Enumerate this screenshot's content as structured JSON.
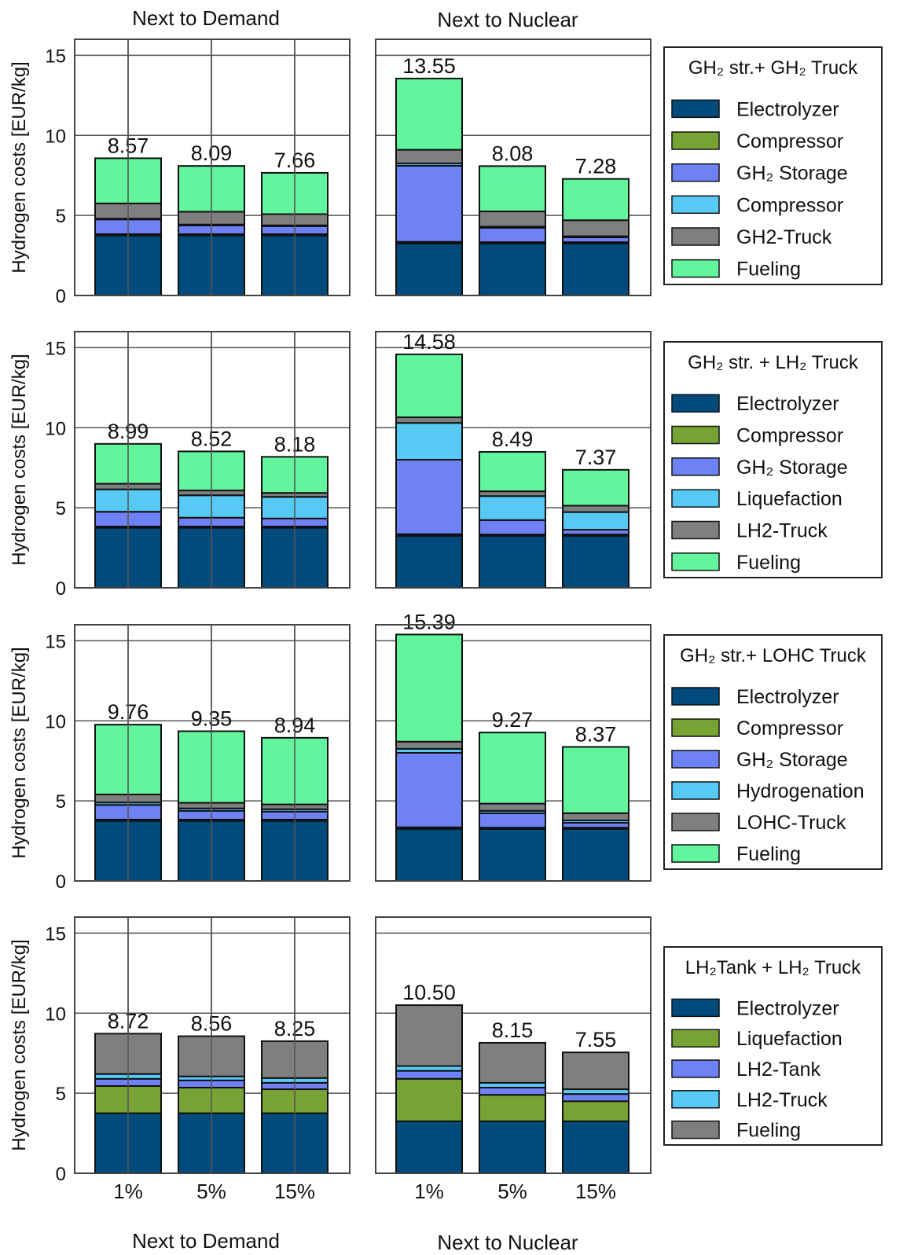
{
  "figure": {
    "column_titles_top": [
      "Next to Demand",
      "Next to Nuclear"
    ],
    "column_titles_bottom": [
      "Next to Demand",
      "Next to Nuclear"
    ],
    "ylabel": "Hydrogen costs [EUR/kg]",
    "yticks": [
      "0",
      "5",
      "10",
      "15"
    ],
    "xticks": [
      "1%",
      "5%",
      "15%"
    ]
  },
  "chart_data": [
    {
      "type": "bar",
      "stacked": true,
      "legend_title": "GH₂ str.+ GH₂ Truck",
      "ylim": [
        0,
        16
      ],
      "yticks": [
        0,
        5,
        10,
        15
      ],
      "grid": true,
      "legend_position": "right",
      "categories": [
        "1%",
        "5%",
        "15%"
      ],
      "series_names": [
        "Electrolyzer",
        "Compressor",
        "GH₂ Storage",
        "Compressor",
        "GH2-Truck",
        "Fueling"
      ],
      "colors": [
        "#004b7c",
        "#77a335",
        "#6f82f5",
        "#57c9f5",
        "#7f7f7f",
        "#62f59e"
      ],
      "panels": [
        {
          "location": "Next to Demand",
          "totals": [
            "8.57",
            "8.09",
            "7.66"
          ],
          "segments": [
            [
              3.75,
              0.08,
              0.92,
              0.05,
              0.95,
              2.82
            ],
            [
              3.75,
              0.08,
              0.55,
              0.05,
              0.8,
              2.86
            ],
            [
              3.75,
              0.08,
              0.5,
              0.05,
              0.7,
              2.58
            ]
          ]
        },
        {
          "location": "Next to Nuclear",
          "totals": [
            "13.55",
            "8.08",
            "7.28"
          ],
          "segments": [
            [
              3.25,
              0.1,
              4.75,
              0.15,
              0.85,
              4.45
            ],
            [
              3.25,
              0.08,
              0.9,
              0.07,
              0.95,
              2.83
            ],
            [
              3.25,
              0.08,
              0.3,
              0.07,
              1.0,
              2.58
            ]
          ]
        }
      ]
    },
    {
      "type": "bar",
      "stacked": true,
      "legend_title": "GH₂ str. + LH₂ Truck",
      "ylim": [
        0,
        16
      ],
      "yticks": [
        0,
        5,
        10,
        15
      ],
      "grid": true,
      "legend_position": "right",
      "categories": [
        "1%",
        "5%",
        "15%"
      ],
      "series_names": [
        "Electrolyzer",
        "Compressor",
        "GH₂ Storage",
        "Liquefaction",
        "LH2-Truck",
        "Fueling"
      ],
      "colors": [
        "#004b7c",
        "#77a335",
        "#6f82f5",
        "#57c9f5",
        "#7f7f7f",
        "#62f59e"
      ],
      "panels": [
        {
          "location": "Next to Demand",
          "totals": [
            "8.99",
            "8.52",
            "8.18"
          ],
          "segments": [
            [
              3.75,
              0.08,
              0.92,
              1.4,
              0.35,
              2.49
            ],
            [
              3.75,
              0.08,
              0.55,
              1.4,
              0.3,
              2.44
            ],
            [
              3.75,
              0.08,
              0.5,
              1.35,
              0.25,
              2.25
            ]
          ]
        },
        {
          "location": "Next to Nuclear",
          "totals": [
            "14.58",
            "8.49",
            "7.37"
          ],
          "segments": [
            [
              3.25,
              0.1,
              4.65,
              2.3,
              0.35,
              3.93
            ],
            [
              3.25,
              0.08,
              0.9,
              1.5,
              0.3,
              2.46
            ],
            [
              3.25,
              0.08,
              0.3,
              1.1,
              0.4,
              2.24
            ]
          ]
        }
      ]
    },
    {
      "type": "bar",
      "stacked": true,
      "legend_title": "GH₂ str.+ LOHC Truck",
      "ylim": [
        0,
        16
      ],
      "yticks": [
        0,
        5,
        10,
        15
      ],
      "grid": true,
      "legend_position": "right",
      "categories": [
        "1%",
        "5%",
        "15%"
      ],
      "series_names": [
        "Electrolyzer",
        "Compressor",
        "GH₂ Storage",
        "Hydrogenation",
        "LOHC-Truck",
        "Fueling"
      ],
      "colors": [
        "#004b7c",
        "#77a335",
        "#6f82f5",
        "#57c9f5",
        "#7f7f7f",
        "#62f59e"
      ],
      "panels": [
        {
          "location": "Next to Demand",
          "totals": [
            "9.76",
            "9.35",
            "8.94"
          ],
          "segments": [
            [
              3.75,
              0.08,
              0.92,
              0.15,
              0.5,
              4.36
            ],
            [
              3.75,
              0.08,
              0.55,
              0.15,
              0.35,
              4.47
            ],
            [
              3.75,
              0.08,
              0.5,
              0.15,
              0.3,
              4.16
            ]
          ]
        },
        {
          "location": "Next to Nuclear",
          "totals": [
            "15.39",
            "9.27",
            "8.37"
          ],
          "segments": [
            [
              3.25,
              0.1,
              4.65,
              0.25,
              0.45,
              6.69
            ],
            [
              3.25,
              0.08,
              0.9,
              0.15,
              0.45,
              4.44
            ],
            [
              3.25,
              0.08,
              0.3,
              0.15,
              0.45,
              4.14
            ]
          ]
        }
      ]
    },
    {
      "type": "bar",
      "stacked": true,
      "legend_title": "LH₂Tank + LH₂ Truck",
      "ylim": [
        0,
        16
      ],
      "yticks": [
        0,
        5,
        10,
        15
      ],
      "grid": true,
      "legend_position": "right",
      "categories": [
        "1%",
        "5%",
        "15%"
      ],
      "series_names": [
        "Electrolyzer",
        "Liquefaction",
        "LH2-Tank",
        "LH2-Truck",
        "Fueling"
      ],
      "colors": [
        "#004b7c",
        "#77a335",
        "#6f82f5",
        "#57c9f5",
        "#7f7f7f"
      ],
      "panels": [
        {
          "location": "Next to Demand",
          "totals": [
            "8.72",
            "8.56",
            "8.25"
          ],
          "segments": [
            [
              3.75,
              1.7,
              0.45,
              0.3,
              2.52
            ],
            [
              3.75,
              1.6,
              0.45,
              0.25,
              2.51
            ],
            [
              3.75,
              1.5,
              0.4,
              0.3,
              2.3
            ]
          ]
        },
        {
          "location": "Next to Nuclear",
          "totals": [
            "10.50",
            "8.15",
            "7.55"
          ],
          "segments": [
            [
              3.25,
              2.65,
              0.5,
              0.3,
              3.8
            ],
            [
              3.25,
              1.65,
              0.45,
              0.3,
              2.5
            ],
            [
              3.25,
              1.25,
              0.45,
              0.3,
              2.3
            ]
          ]
        }
      ]
    }
  ]
}
